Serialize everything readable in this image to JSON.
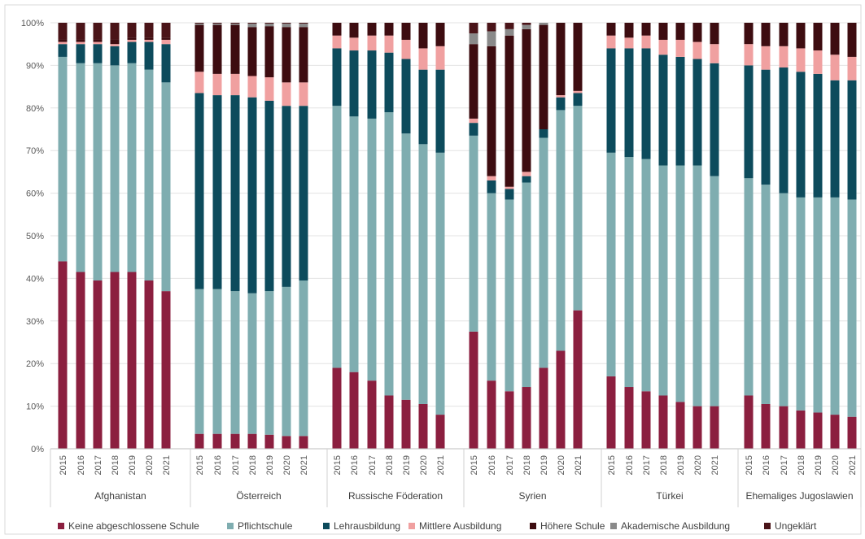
{
  "chart_data": {
    "type": "bar",
    "stacked": true,
    "percent_stacked": true,
    "ylim": [
      0,
      100
    ],
    "y_ticks": [
      "0%",
      "10%",
      "20%",
      "30%",
      "40%",
      "50%",
      "60%",
      "70%",
      "80%",
      "90%",
      "100%"
    ],
    "grid": true,
    "legend_position": "bottom",
    "years": [
      "2015",
      "2016",
      "2017",
      "2018",
      "2019",
      "2020",
      "2021"
    ],
    "series": [
      {
        "name": "Keine abgeschlossene Schule",
        "color": "#8b1f3f"
      },
      {
        "name": "Pflichtschule",
        "color": "#7fadb0"
      },
      {
        "name": "Lehrausbildung",
        "color": "#0d4b5c"
      },
      {
        "name": "Mittlere Ausbildung",
        "color": "#f0a0a0"
      },
      {
        "name": "Höhere Schule",
        "color": "#3d0c10"
      },
      {
        "name": "Akademische Ausbildung",
        "color": "#8a8a8a"
      },
      {
        "name": "Ungeklärt",
        "color": "#4a1418"
      }
    ],
    "groups": [
      {
        "name": "Afghanistan",
        "values": [
          [
            44,
            48,
            3,
            0.5,
            0.5,
            0,
            4
          ],
          [
            41.5,
            49,
            4.5,
            0.5,
            0.5,
            0,
            4
          ],
          [
            39.5,
            51,
            4.5,
            0.5,
            0.5,
            0,
            4
          ],
          [
            41.5,
            48.5,
            4.5,
            0.5,
            1,
            0,
            4
          ],
          [
            41.5,
            49,
            5,
            0.5,
            0.5,
            0,
            3.5
          ],
          [
            39.5,
            49.5,
            6.5,
            0.5,
            0.5,
            0,
            3.5
          ],
          [
            37,
            49,
            9,
            1,
            0.5,
            0,
            3.5
          ]
        ]
      },
      {
        "name": "Österreich",
        "values": [
          [
            3.5,
            34,
            46,
            5,
            11,
            0.3,
            0.2
          ],
          [
            3.5,
            34,
            45.5,
            5,
            11.5,
            0.3,
            0.2
          ],
          [
            3.5,
            33.5,
            46,
            5,
            11.5,
            0.3,
            0.2
          ],
          [
            3.5,
            33,
            46,
            5,
            11.5,
            0.8,
            0.2
          ],
          [
            3.3,
            33.7,
            44.7,
            5.5,
            12,
            0.6,
            0.2
          ],
          [
            3,
            35,
            42.5,
            5.5,
            13,
            0.8,
            0.2
          ],
          [
            3,
            36.5,
            41,
            5.5,
            13,
            0.8,
            0.2
          ]
        ]
      },
      {
        "name": "Russische Föderation",
        "values": [
          [
            19,
            61.5,
            13.5,
            3,
            3,
            0,
            0
          ],
          [
            18,
            60,
            15.5,
            3,
            3.5,
            0,
            0
          ],
          [
            16,
            61.5,
            16,
            3.5,
            3,
            0,
            0
          ],
          [
            12.5,
            66.5,
            14,
            4,
            3,
            0,
            0
          ],
          [
            11.5,
            62.5,
            17.5,
            4.5,
            4,
            0,
            0
          ],
          [
            10.5,
            61,
            17.5,
            5,
            6,
            0,
            0
          ],
          [
            8,
            61.5,
            19.5,
            5.5,
            5.5,
            0,
            0
          ]
        ]
      },
      {
        "name": "Syrien",
        "values": [
          [
            27.5,
            46,
            3,
            1,
            17.5,
            2.5,
            2.5
          ],
          [
            16,
            44,
            3,
            1,
            30.5,
            3.5,
            2
          ],
          [
            13.5,
            45,
            2.5,
            0.5,
            35.5,
            1.5,
            1.5
          ],
          [
            14.5,
            48,
            1.5,
            1,
            33.5,
            1,
            0.5
          ],
          [
            19,
            54,
            2,
            0,
            24.5,
            0.5,
            0
          ],
          [
            23,
            56.5,
            3,
            0.5,
            17,
            0,
            0
          ],
          [
            32.5,
            48,
            3,
            0.5,
            16,
            0,
            0
          ]
        ]
      },
      {
        "name": "Türkei",
        "values": [
          [
            17,
            52.5,
            24.5,
            3,
            3,
            0,
            0
          ],
          [
            14.5,
            54,
            25.5,
            2.5,
            3.5,
            0,
            0
          ],
          [
            13.5,
            54.5,
            26,
            3,
            3,
            0,
            0
          ],
          [
            12.5,
            54,
            26,
            3.5,
            4,
            0,
            0
          ],
          [
            11,
            55.5,
            25.5,
            4,
            4,
            0,
            0
          ],
          [
            10,
            56.5,
            25,
            4,
            4.5,
            0,
            0
          ],
          [
            10,
            54,
            26.5,
            4.5,
            5,
            0,
            0
          ]
        ]
      },
      {
        "name": "Ehemaliges Jugoslawien",
        "values": [
          [
            12.5,
            51,
            26.5,
            5,
            5,
            0,
            0
          ],
          [
            10.5,
            51.5,
            27,
            5.5,
            5.5,
            0,
            0
          ],
          [
            10,
            50,
            29.5,
            5,
            5.5,
            0,
            0
          ],
          [
            9,
            50,
            29.5,
            5.5,
            6,
            0,
            0
          ],
          [
            8.5,
            50.5,
            29,
            5.5,
            6.5,
            0,
            0
          ],
          [
            8,
            51,
            27.5,
            6,
            7.5,
            0,
            0
          ],
          [
            7.5,
            51,
            28,
            5.5,
            8,
            0,
            0
          ]
        ]
      }
    ]
  }
}
